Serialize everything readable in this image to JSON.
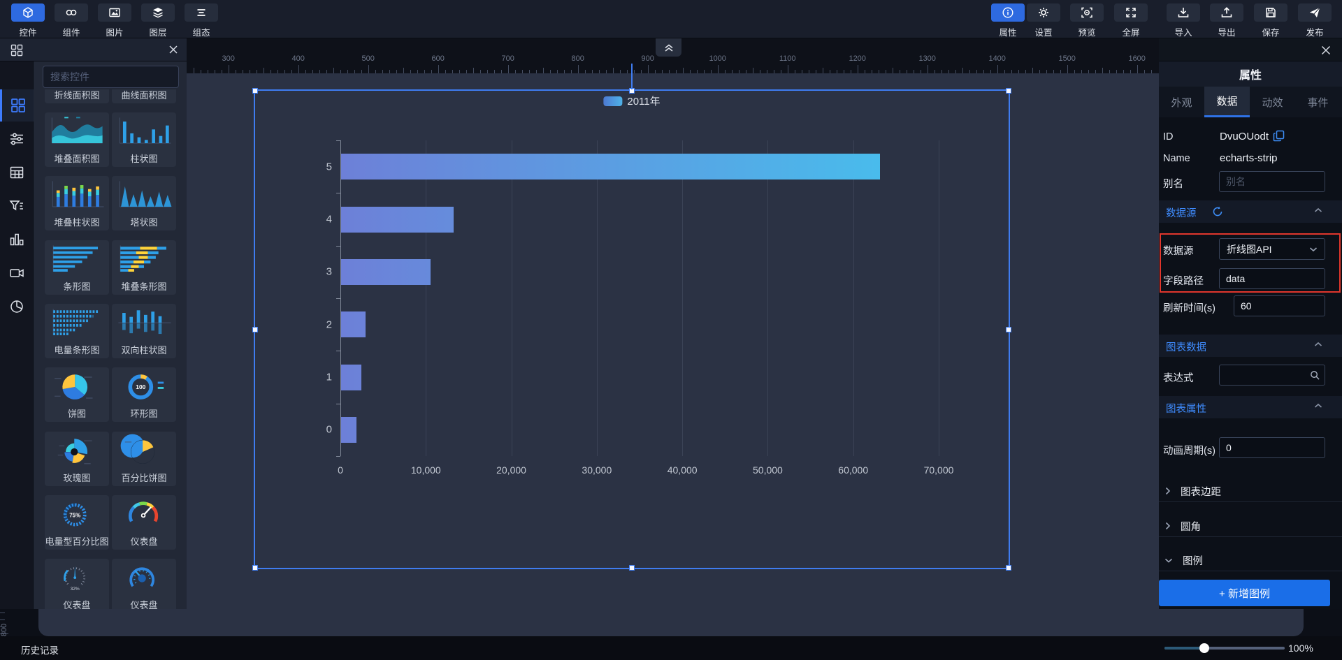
{
  "toolbar": {
    "left": [
      {
        "label": "控件",
        "icon": "cube-icon",
        "active": true
      },
      {
        "label": "组件",
        "icon": "link-icon",
        "active": false
      },
      {
        "label": "图片",
        "icon": "image-icon",
        "active": false
      },
      {
        "label": "图层",
        "icon": "layers-icon",
        "active": false
      },
      {
        "label": "组态",
        "icon": "lines-icon",
        "active": false
      }
    ],
    "right": [
      {
        "label": "属性",
        "icon": "info-icon",
        "active": true
      },
      {
        "label": "设置",
        "icon": "gear-icon",
        "active": false
      },
      {
        "label": "预览",
        "icon": "preview-icon",
        "active": false
      },
      {
        "label": "全屏",
        "icon": "fullscreen-icon",
        "active": false
      },
      {
        "label": "导入",
        "icon": "import-icon",
        "active": false
      },
      {
        "label": "导出",
        "icon": "export-icon",
        "active": false
      },
      {
        "label": "保存",
        "icon": "save-icon",
        "active": false
      },
      {
        "label": "发布",
        "icon": "publish-icon",
        "active": false
      }
    ]
  },
  "sidebar": {
    "search_placeholder": "搜索控件",
    "widgets": [
      {
        "label": "折线面积图",
        "thumb": "line-area"
      },
      {
        "label": "曲线面积图",
        "thumb": "curve-area"
      },
      {
        "label": "堆叠面积图",
        "thumb": "stacked-area"
      },
      {
        "label": "柱状图",
        "thumb": "bar"
      },
      {
        "label": "堆叠柱状图",
        "thumb": "stacked-bar"
      },
      {
        "label": "塔状图",
        "thumb": "tower"
      },
      {
        "label": "条形图",
        "thumb": "hbar"
      },
      {
        "label": "堆叠条形图",
        "thumb": "stacked-hbar"
      },
      {
        "label": "电量条形图",
        "thumb": "battery-hbar"
      },
      {
        "label": "双向柱状图",
        "thumb": "bidir-bar"
      },
      {
        "label": "饼图",
        "thumb": "pie"
      },
      {
        "label": "环形图",
        "thumb": "ring"
      },
      {
        "label": "玫瑰图",
        "thumb": "rose"
      },
      {
        "label": "百分比饼图",
        "thumb": "pct-pie"
      },
      {
        "label": "电量型百分比图",
        "thumb": "battery-pct"
      },
      {
        "label": "仪表盘",
        "thumb": "gauge-color"
      },
      {
        "label": "仪表盘",
        "thumb": "gauge-tick"
      },
      {
        "label": "仪表盘",
        "thumb": "gauge-blue"
      }
    ],
    "thumb_texts": {
      "ring": "100",
      "battery_pct": "75%",
      "gauge_tick": "32%"
    }
  },
  "ruler": {
    "h_start": 300,
    "h_end": 1600,
    "h_step": 100,
    "v_label": "800"
  },
  "chart_data": {
    "type": "bar",
    "orientation": "horizontal",
    "legend": [
      "2011年"
    ],
    "categories": [
      "0",
      "1",
      "2",
      "3",
      "4",
      "5"
    ],
    "values": [
      1820,
      2349,
      2903,
      10497,
      13174,
      63023
    ],
    "xlim": [
      0,
      70000
    ],
    "xtick_labels": [
      "0",
      "10,000",
      "20,000",
      "30,000",
      "40,000",
      "50,000",
      "60,000",
      "70,000"
    ],
    "grid": true,
    "bar_gradient": [
      "#6d80d8",
      "#45c2ee"
    ]
  },
  "panel": {
    "title": "属性",
    "tabs": [
      "外观",
      "数据",
      "动效",
      "事件"
    ],
    "active_tab": "数据",
    "id_label": "ID",
    "id_value": "DvuOUodt",
    "name_label": "Name",
    "name_value": "echarts-strip",
    "alias_label": "别名",
    "alias_placeholder": "别名",
    "datasource": {
      "title": "数据源",
      "source_label": "数据源",
      "source_value": "折线图API",
      "path_label": "字段路径",
      "path_value": "data",
      "refresh_label": "刷新时间(s)",
      "refresh_value": "60"
    },
    "chart_section": {
      "title": "图表数据",
      "expr_label": "表达式",
      "expr_value": ""
    },
    "props_section": {
      "title": "图表属性",
      "anim_label": "动画周期(s)",
      "anim_value": "0",
      "margins_label": "图表边距",
      "radius_label": "圆角",
      "legend_label": "图例",
      "add_legend": "+ 新增图例"
    }
  },
  "statusbar": {
    "history": "历史记录",
    "zoom": "100%"
  }
}
